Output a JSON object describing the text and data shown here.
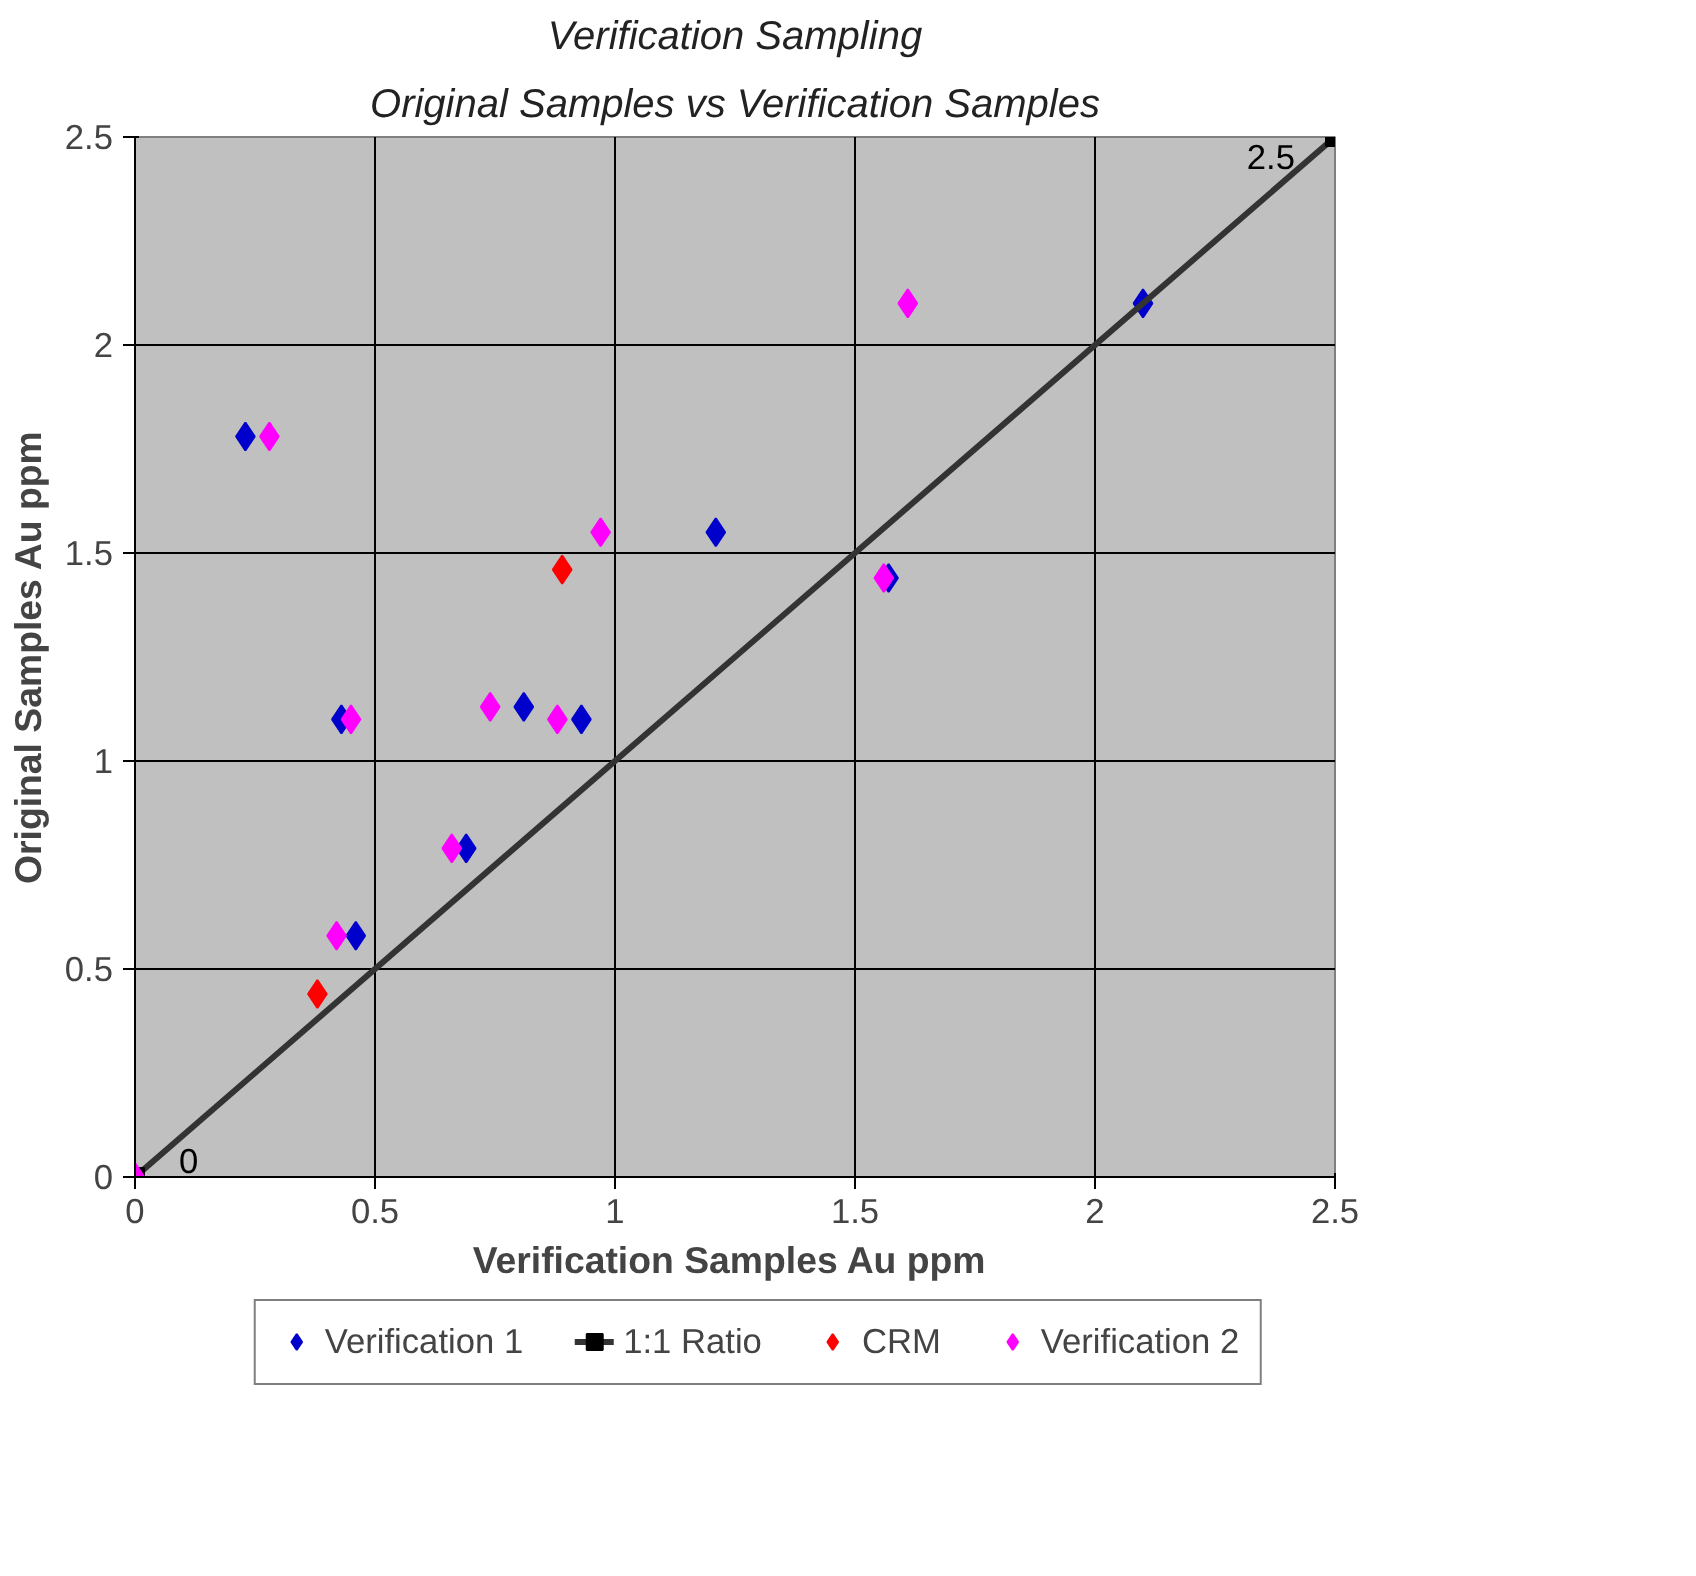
{
  "chart_data": {
    "type": "scatter",
    "title": "Verification Sampling",
    "subtitle": "Original Samples vs Verification Samples",
    "xlabel": "Verification Samples  Au ppm",
    "ylabel": "Original Samples Au ppm",
    "xlim": [
      0,
      2.5
    ],
    "ylim": [
      0,
      2.5
    ],
    "xticks": [
      0,
      0.5,
      1,
      1.5,
      2,
      2.5
    ],
    "yticks": [
      0,
      0.5,
      1,
      1.5,
      2,
      2.5
    ],
    "grid": true,
    "legend": "bottom",
    "marker": "diamond",
    "series": [
      {
        "name": "Verification 1",
        "color": "#0000cc",
        "x": [
          0.23,
          1.21,
          2.1,
          1.57,
          0.43,
          0.93,
          0.81,
          0.69,
          0.46
        ],
        "values": [
          1.78,
          1.55,
          2.1,
          1.44,
          1.1,
          1.1,
          1.13,
          0.79,
          0.58
        ]
      },
      {
        "name": "1:1 Ratio",
        "type": "line",
        "color": "#333333",
        "marker": "square",
        "x": [
          0,
          2.5
        ],
        "values": [
          0,
          2.5
        ],
        "value_labels": [
          "0",
          "2.5"
        ]
      },
      {
        "name": "CRM",
        "color": "#ff0000",
        "x": [
          0.89,
          0.38
        ],
        "values": [
          1.46,
          0.44
        ]
      },
      {
        "name": "Verification 2",
        "color": "#ff00ff",
        "x": [
          0.28,
          0.97,
          1.61,
          1.56,
          0.45,
          0.74,
          0.88,
          0.66,
          0.42,
          0
        ],
        "values": [
          1.78,
          1.55,
          2.1,
          1.44,
          1.1,
          1.13,
          1.1,
          0.79,
          0.58,
          0
        ]
      }
    ]
  }
}
